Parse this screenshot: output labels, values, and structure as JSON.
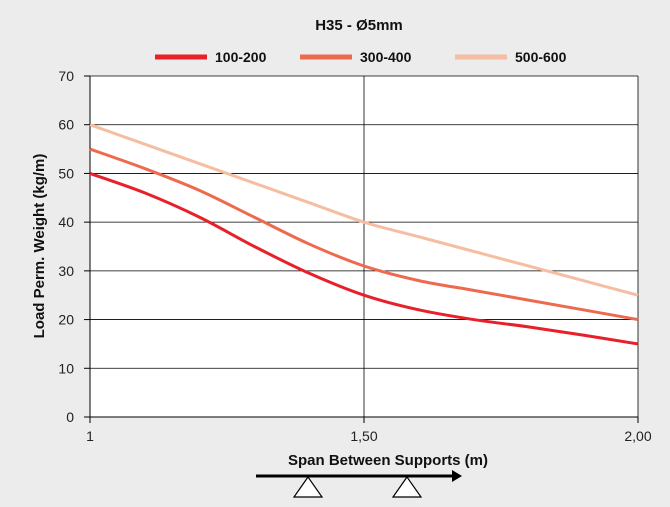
{
  "chart_data": {
    "type": "line",
    "title": "H35 - Ø5mm",
    "xlabel": "Span Between Supports (m)",
    "ylabel": "Load Perm. Weight (kg/m)",
    "xlim": [
      1,
      2
    ],
    "ylim": [
      0,
      70
    ],
    "x_ticks": [
      {
        "value": 1,
        "label": "1"
      },
      {
        "value": 1.5,
        "label": "1,50"
      },
      {
        "value": 2,
        "label": "2,00"
      }
    ],
    "y_ticks": [
      {
        "value": 0,
        "label": "0"
      },
      {
        "value": 10,
        "label": "10"
      },
      {
        "value": 20,
        "label": "20"
      },
      {
        "value": 30,
        "label": "30"
      },
      {
        "value": 40,
        "label": "40"
      },
      {
        "value": 50,
        "label": "50"
      },
      {
        "value": 60,
        "label": "60"
      },
      {
        "value": 70,
        "label": "70"
      }
    ],
    "grid": true,
    "legend_position": "top",
    "x": [
      1.0,
      1.1,
      1.2,
      1.3,
      1.4,
      1.5,
      1.6,
      1.7,
      1.8,
      1.9,
      2.0
    ],
    "series": [
      {
        "name": "100-200",
        "color": "#e8202a",
        "values": [
          50,
          46,
          41,
          35,
          29.5,
          25,
          22,
          20,
          18.5,
          16.8,
          15
        ]
      },
      {
        "name": "300-400",
        "color": "#ee6a4e",
        "values": [
          55,
          51,
          46.5,
          41,
          35.5,
          31,
          28,
          26,
          24,
          22,
          20
        ]
      },
      {
        "name": "500-600",
        "color": "#f5bea2",
        "values": [
          60,
          56,
          52,
          48,
          44,
          40,
          37,
          34,
          31,
          28,
          25
        ]
      }
    ],
    "annotation": "beam-with-two-supports-icon",
    "colors": {
      "background": "#ececec",
      "plot_bg": "#ffffff",
      "grid": "#000000",
      "text": "#111111"
    }
  }
}
